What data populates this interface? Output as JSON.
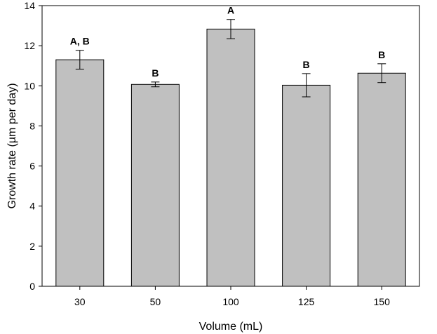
{
  "chart_data": {
    "type": "bar",
    "xlabel": "Volume (mL)",
    "ylabel": "Growth rate (µm per day)",
    "categories": [
      "30",
      "50",
      "100",
      "125",
      "150"
    ],
    "values": [
      11.3,
      10.07,
      12.83,
      10.03,
      10.63
    ],
    "errors": [
      0.47,
      0.12,
      0.48,
      0.58,
      0.47
    ],
    "significance_labels": [
      "A, B",
      "B",
      "A",
      "B",
      "B"
    ],
    "ylim": [
      0,
      14
    ],
    "yticks": [
      0,
      2,
      4,
      6,
      8,
      10,
      12,
      14
    ],
    "grid": false,
    "legend": "none",
    "colors": {
      "bar_fill": "#c0c0c0",
      "bar_stroke": "#000000",
      "axis": "#000000"
    }
  }
}
